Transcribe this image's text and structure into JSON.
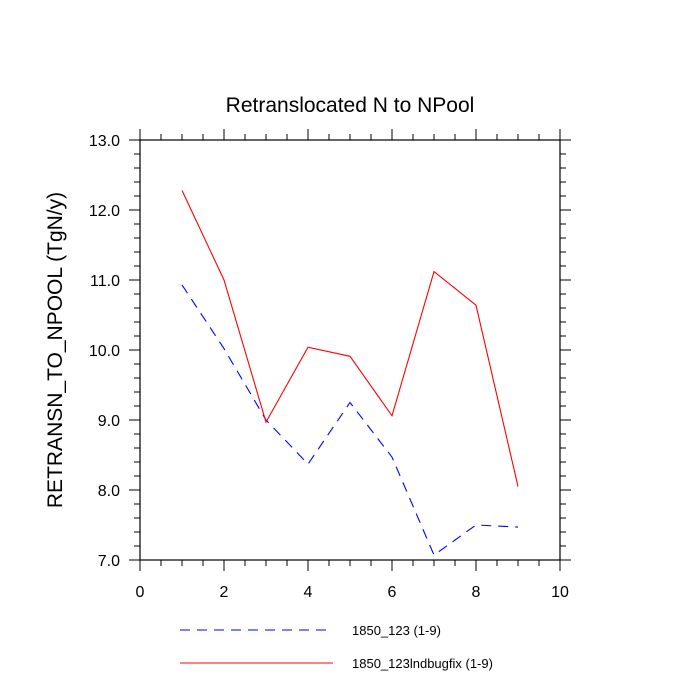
{
  "chart_data": {
    "type": "line",
    "title": "Retranslocated N to NPool",
    "xlabel": "",
    "ylabel": "RETRANSN_TO_NPOOL  (TgN/y)",
    "xlim": [
      0,
      10
    ],
    "ylim": [
      7.0,
      13.0
    ],
    "x_ticks": [
      0,
      2,
      4,
      6,
      8,
      10
    ],
    "x_tick_labels": [
      "0",
      "2",
      "4",
      "6",
      "8",
      "10"
    ],
    "y_ticks": [
      7.0,
      8.0,
      9.0,
      10.0,
      11.0,
      12.0,
      13.0
    ],
    "y_tick_labels": [
      "7.0",
      "8.0",
      "9.0",
      "10.0",
      "11.0",
      "12.0",
      "13.0"
    ],
    "legend_position": "bottom",
    "series": [
      {
        "name": "1850_123 (1-9)",
        "color": "#0000ff",
        "style": "dashed",
        "x": [
          1,
          2,
          3,
          4,
          5,
          6,
          7,
          8,
          9
        ],
        "values": [
          10.93,
          10.02,
          9.0,
          8.37,
          9.25,
          8.47,
          7.07,
          7.5,
          7.47
        ]
      },
      {
        "name": "1850_123lndbugfix (1-9)",
        "color": "#ff0000",
        "style": "solid",
        "x": [
          1,
          2,
          3,
          4,
          5,
          6,
          7,
          8,
          9
        ],
        "values": [
          12.28,
          11.0,
          8.97,
          10.04,
          9.91,
          9.06,
          11.12,
          10.64,
          8.05
        ]
      }
    ]
  }
}
